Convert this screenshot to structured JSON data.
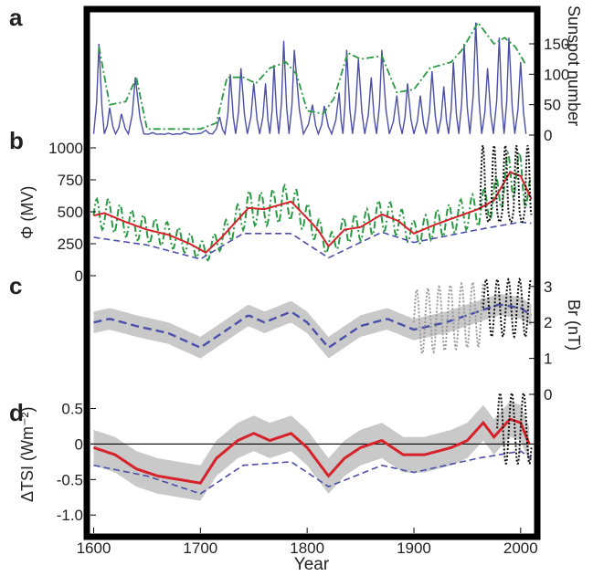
{
  "figure": {
    "panel_letters": [
      "a",
      "b",
      "c",
      "d"
    ],
    "x_axis": {
      "label": "Year",
      "ticks": [
        "1600",
        "1700",
        "1800",
        "1900",
        "2000"
      ],
      "range": [
        1597,
        2013
      ]
    }
  },
  "chart_data": [
    {
      "panel": "a",
      "type": "line",
      "ylabel": "Sunspot number",
      "y_ticks": [
        "0",
        "50",
        "100",
        "150"
      ],
      "ylim": [
        0,
        180
      ],
      "series": [
        {
          "style": "solid",
          "color": "#4b4fa8",
          "cycle_peaks": [
            [
              1605,
              150
            ],
            [
              1615,
              45
            ],
            [
              1626,
              35
            ],
            [
              1639,
              95
            ],
            [
              1655,
              4
            ],
            [
              1670,
              3
            ],
            [
              1685,
              5
            ],
            [
              1705,
              8
            ],
            [
              1718,
              30
            ],
            [
              1728,
              100
            ],
            [
              1738,
              110
            ],
            [
              1750,
              85
            ],
            [
              1761,
              85
            ],
            [
              1769,
              115
            ],
            [
              1778,
              155
            ],
            [
              1788,
              140
            ],
            [
              1805,
              50
            ],
            [
              1816,
              48
            ],
            [
              1830,
              70
            ],
            [
              1837,
              140
            ],
            [
              1848,
              125
            ],
            [
              1860,
              95
            ],
            [
              1870,
              140
            ],
            [
              1884,
              65
            ],
            [
              1894,
              85
            ],
            [
              1906,
              65
            ],
            [
              1917,
              105
            ],
            [
              1928,
              80
            ],
            [
              1937,
              120
            ],
            [
              1947,
              150
            ],
            [
              1958,
              185
            ],
            [
              1969,
              110
            ],
            [
              1980,
              160
            ],
            [
              1989,
              160
            ],
            [
              2000,
              120
            ]
          ]
        },
        {
          "style": "dash-dot",
          "color": "#2a9a43",
          "points": [
            [
              1605,
              145
            ],
            [
              1615,
              50
            ],
            [
              1630,
              55
            ],
            [
              1640,
              95
            ],
            [
              1650,
              10
            ],
            [
              1700,
              10
            ],
            [
              1715,
              20
            ],
            [
              1725,
              95
            ],
            [
              1740,
              95
            ],
            [
              1752,
              85
            ],
            [
              1765,
              110
            ],
            [
              1780,
              120
            ],
            [
              1790,
              100
            ],
            [
              1800,
              40
            ],
            [
              1815,
              35
            ],
            [
              1825,
              60
            ],
            [
              1838,
              135
            ],
            [
              1850,
              125
            ],
            [
              1870,
              130
            ],
            [
              1884,
              70
            ],
            [
              1900,
              75
            ],
            [
              1915,
              110
            ],
            [
              1935,
              120
            ],
            [
              1945,
              140
            ],
            [
              1960,
              185
            ],
            [
              1975,
              150
            ],
            [
              1985,
              160
            ],
            [
              1995,
              145
            ],
            [
              2005,
              115
            ]
          ]
        }
      ]
    },
    {
      "panel": "b",
      "type": "line",
      "ylabel": "Φ (MV)",
      "y_ticks": [
        "0",
        "250",
        "500",
        "750",
        "1000"
      ],
      "ylim": [
        0,
        1100
      ],
      "series": [
        {
          "style": "solid",
          "color": "#d6222a",
          "points": [
            [
              1600,
              470
            ],
            [
              1610,
              490
            ],
            [
              1630,
              420
            ],
            [
              1650,
              360
            ],
            [
              1670,
              320
            ],
            [
              1690,
              250
            ],
            [
              1705,
              180
            ],
            [
              1720,
              300
            ],
            [
              1745,
              530
            ],
            [
              1760,
              520
            ],
            [
              1785,
              580
            ],
            [
              1800,
              450
            ],
            [
              1810,
              360
            ],
            [
              1820,
              230
            ],
            [
              1835,
              360
            ],
            [
              1850,
              380
            ],
            [
              1870,
              480
            ],
            [
              1885,
              430
            ],
            [
              1900,
              330
            ],
            [
              1920,
              400
            ],
            [
              1940,
              460
            ],
            [
              1960,
              520
            ],
            [
              1975,
              590
            ],
            [
              1990,
              810
            ],
            [
              2000,
              780
            ],
            [
              2010,
              600
            ]
          ]
        },
        {
          "style": "dash-dot",
          "color": "#2a9a43",
          "oscillation_envelope": {
            "min": 320,
            "max": 800
          }
        },
        {
          "style": "dashed",
          "color": "#4b4fa8",
          "points": [
            [
              1600,
              300
            ],
            [
              1650,
              240
            ],
            [
              1700,
              130
            ],
            [
              1740,
              330
            ],
            [
              1785,
              330
            ],
            [
              1820,
              140
            ],
            [
              1870,
              340
            ],
            [
              1900,
              260
            ],
            [
              1960,
              360
            ],
            [
              2000,
              420
            ],
            [
              2010,
              410
            ]
          ]
        },
        {
          "style": "dotted",
          "color": "#111111",
          "x_range": [
            1960,
            2010
          ],
          "peak": 1080
        }
      ]
    },
    {
      "panel": "c",
      "type": "line",
      "ylabel": "Br (nT)",
      "y_ticks": [
        "0",
        "1",
        "2",
        "3"
      ],
      "ylim": [
        0,
        3.3
      ],
      "series": [
        {
          "style": "dashed",
          "color": "#4b4fa8",
          "uncertainty_band": "gray",
          "points": [
            [
              1600,
              2.0
            ],
            [
              1615,
              2.1
            ],
            [
              1640,
              1.9
            ],
            [
              1670,
              1.7
            ],
            [
              1700,
              1.3
            ],
            [
              1720,
              1.7
            ],
            [
              1745,
              2.2
            ],
            [
              1760,
              2.0
            ],
            [
              1785,
              2.3
            ],
            [
              1800,
              2.0
            ],
            [
              1820,
              1.3
            ],
            [
              1830,
              1.5
            ],
            [
              1850,
              1.9
            ],
            [
              1875,
              2.1
            ],
            [
              1900,
              1.8
            ],
            [
              1930,
              2.0
            ],
            [
              1960,
              2.3
            ],
            [
              1980,
              2.5
            ],
            [
              2000,
              2.4
            ],
            [
              2010,
              2.2
            ]
          ]
        },
        {
          "style": "dotted",
          "color": "#999999",
          "x_range": [
            1900,
            1965
          ]
        },
        {
          "style": "dotted",
          "color": "#111111",
          "x_range": [
            1965,
            2010
          ]
        }
      ]
    },
    {
      "panel": "d",
      "type": "line",
      "ylabel": "ΔTSI (Wm⁻²)",
      "y_ticks": [
        "-1.0",
        "-0.5",
        "0",
        "0.5"
      ],
      "ylim": [
        -1.1,
        0.7
      ],
      "series": [
        {
          "style": "solid",
          "color": "#d6222a",
          "uncertainty_band": "gray",
          "points": [
            [
              1600,
              -0.05
            ],
            [
              1620,
              -0.15
            ],
            [
              1640,
              -0.35
            ],
            [
              1660,
              -0.45
            ],
            [
              1680,
              -0.5
            ],
            [
              1700,
              -0.55
            ],
            [
              1715,
              -0.2
            ],
            [
              1735,
              0.05
            ],
            [
              1750,
              0.15
            ],
            [
              1765,
              0.05
            ],
            [
              1785,
              0.15
            ],
            [
              1800,
              -0.05
            ],
            [
              1815,
              -0.35
            ],
            [
              1820,
              -0.45
            ],
            [
              1835,
              -0.2
            ],
            [
              1850,
              -0.05
            ],
            [
              1870,
              0.05
            ],
            [
              1890,
              -0.15
            ],
            [
              1910,
              -0.15
            ],
            [
              1935,
              -0.05
            ],
            [
              1950,
              0.05
            ],
            [
              1965,
              0.3
            ],
            [
              1975,
              0.1
            ],
            [
              1990,
              0.35
            ],
            [
              2000,
              0.3
            ],
            [
              2008,
              0.0
            ]
          ]
        },
        {
          "style": "dashed",
          "color": "#4b4fa8",
          "points": [
            [
              1600,
              -0.3
            ],
            [
              1650,
              -0.45
            ],
            [
              1700,
              -0.7
            ],
            [
              1740,
              -0.3
            ],
            [
              1785,
              -0.25
            ],
            [
              1820,
              -0.6
            ],
            [
              1870,
              -0.3
            ],
            [
              1900,
              -0.4
            ],
            [
              1960,
              -0.2
            ],
            [
              2000,
              -0.1
            ],
            [
              2010,
              -0.2
            ]
          ]
        },
        {
          "style": "dotted",
          "color": "#111111",
          "x_range": [
            1978,
            2010
          ],
          "peak": 0.75
        }
      ]
    }
  ]
}
